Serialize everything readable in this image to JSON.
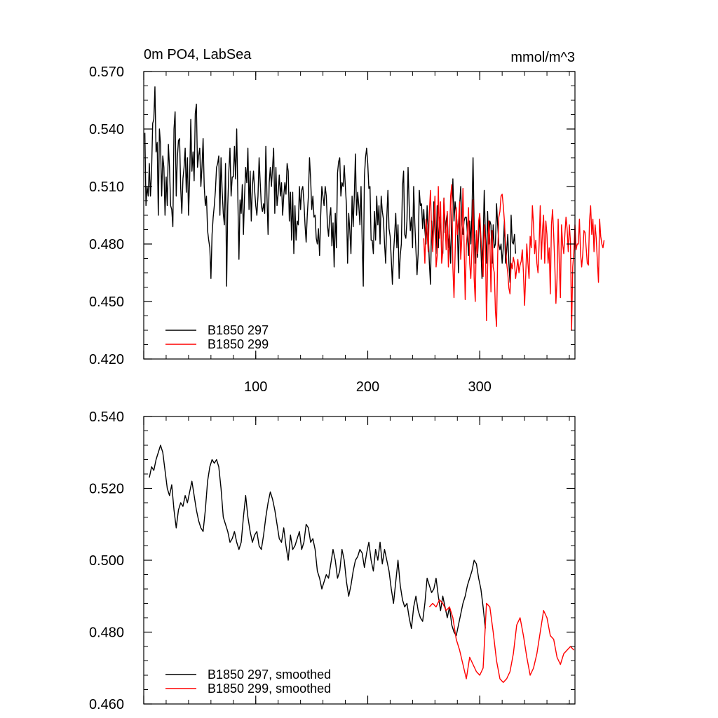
{
  "chart_data": [
    {
      "type": "line",
      "title": "0m PO4, LabSea",
      "units": "mmol/m^3",
      "xlabel": "",
      "ylabel": "",
      "xlim": [
        0,
        385
      ],
      "ylim": [
        0.42,
        0.57
      ],
      "yticks": [
        "0.570",
        "0.540",
        "0.510",
        "0.480",
        "0.450",
        "0.420"
      ],
      "xticks": [
        "100",
        "200",
        "300"
      ],
      "legend_position": "bottom-left",
      "series": [
        {
          "name": "B1850 297",
          "color": "#000000",
          "x_start": 1,
          "x_step": 1,
          "values": [
            0.538,
            0.5,
            0.51,
            0.505,
            0.522,
            0.505,
            0.518,
            0.543,
            0.545,
            0.562,
            0.528,
            0.533,
            0.495,
            0.54,
            0.532,
            0.505,
            0.526,
            0.52,
            0.495,
            0.515,
            0.5,
            0.532,
            0.52,
            0.5,
            0.498,
            0.489,
            0.54,
            0.549,
            0.505,
            0.525,
            0.534,
            0.535,
            0.509,
            0.496,
            0.514,
            0.52,
            0.53,
            0.507,
            0.525,
            0.495,
            0.514,
            0.545,
            0.518,
            0.528,
            0.513,
            0.548,
            0.553,
            0.52,
            0.526,
            0.53,
            0.51,
            0.52,
            0.535,
            0.51,
            0.5,
            0.505,
            0.487,
            0.482,
            0.478,
            0.462,
            0.485,
            0.494,
            0.5,
            0.508,
            0.52,
            0.522,
            0.526,
            0.495,
            0.525,
            0.508,
            0.496,
            0.49,
            0.522,
            0.458,
            0.5,
            0.518,
            0.53,
            0.505,
            0.515,
            0.515,
            0.531,
            0.514,
            0.54,
            0.505,
            0.472,
            0.503,
            0.496,
            0.511,
            0.485,
            0.505,
            0.52,
            0.512,
            0.53,
            0.498,
            0.518,
            0.492,
            0.51,
            0.518,
            0.508,
            0.5,
            0.495,
            0.505,
            0.525,
            0.512,
            0.5,
            0.497,
            0.501,
            0.496,
            0.531,
            0.505,
            0.485,
            0.512,
            0.52,
            0.51,
            0.52,
            0.53,
            0.496,
            0.52,
            0.5,
            0.506,
            0.516,
            0.505,
            0.512,
            0.495,
            0.505,
            0.512,
            0.506,
            0.522,
            0.518,
            0.492,
            0.507,
            0.482,
            0.507,
            0.475,
            0.5,
            0.482,
            0.492,
            0.49,
            0.51,
            0.498,
            0.508,
            0.51,
            0.502,
            0.49,
            0.481,
            0.495,
            0.505,
            0.525,
            0.514,
            0.498,
            0.505,
            0.494,
            0.495,
            0.483,
            0.48,
            0.488,
            0.474,
            0.495,
            0.51,
            0.505,
            0.5,
            0.51,
            0.505,
            0.49,
            0.484,
            0.494,
            0.499,
            0.479,
            0.491,
            0.468,
            0.496,
            0.478,
            0.517,
            0.523,
            0.525,
            0.505,
            0.512,
            0.51,
            0.521,
            0.51,
            0.5,
            0.47,
            0.496,
            0.487,
            0.475,
            0.505,
            0.489,
            0.505,
            0.527,
            0.495,
            0.507,
            0.5,
            0.49,
            0.51,
            0.482,
            0.458,
            0.515,
            0.525,
            0.53,
            0.522,
            0.509,
            0.51,
            0.482,
            0.482,
            0.475,
            0.497,
            0.482,
            0.505,
            0.49,
            0.5,
            0.48,
            0.505,
            0.497,
            0.493,
            0.48,
            0.47,
            0.494,
            0.508,
            0.488,
            0.484,
            0.472,
            0.459,
            0.475,
            0.485,
            0.496,
            0.478,
            0.49,
            0.462,
            0.474,
            0.48,
            0.51,
            0.518,
            0.485,
            0.483,
            0.492,
            0.52,
            0.5,
            0.487,
            0.494,
            0.478,
            0.51,
            0.491,
            0.477,
            0.464,
            0.475,
            0.508,
            0.5,
            0.501,
            0.488,
            0.498,
            0.487,
            0.48,
            0.5,
            0.486,
            0.47,
            0.459,
            0.492,
            0.479,
            0.502,
            0.487,
            0.475,
            0.5,
            0.478,
            0.494,
            0.493,
            0.476,
            0.475,
            0.504,
            0.486,
            0.492,
            0.496,
            0.478,
            0.485,
            0.47,
            0.495,
            0.514,
            0.492,
            0.502,
            0.496,
            0.489,
            0.465,
            0.5,
            0.51,
            0.49,
            0.485,
            0.492,
            0.494,
            0.494,
            0.485,
            0.474,
            0.492,
            0.48,
            0.495,
            0.525,
            0.49,
            0.47,
            0.485,
            0.473,
            0.485,
            0.495,
            0.478,
            0.462,
            0.48,
            0.508,
            0.485,
            0.47,
            0.497,
            0.48,
            0.492,
            0.49,
            0.47,
            0.49,
            0.478,
            0.48,
            0.501,
            0.49,
            0.48,
            0.477,
            0.48,
            0.47,
            0.478,
            0.492,
            0.47,
            0.476,
            0.485,
            0.47,
            0.46,
            0.495,
            0.481,
            0.48,
            0.485,
            0.475
          ]
        },
        {
          "name": "B1850 299",
          "color": "#ff0000",
          "x_start": 250,
          "x_step": 1,
          "values": [
            0.483,
            0.47,
            0.493,
            0.486,
            0.476,
            0.497,
            0.508,
            0.486,
            0.476,
            0.492,
            0.505,
            0.468,
            0.474,
            0.51,
            0.483,
            0.502,
            0.47,
            0.476,
            0.504,
            0.491,
            0.477,
            0.497,
            0.468,
            0.483,
            0.505,
            0.511,
            0.468,
            0.452,
            0.475,
            0.499,
            0.485,
            0.491,
            0.502,
            0.472,
            0.483,
            0.509,
            0.48,
            0.451,
            0.479,
            0.487,
            0.499,
            0.47,
            0.462,
            0.477,
            0.503,
            0.462,
            0.45,
            0.487,
            0.475,
            0.492,
            0.496,
            0.484,
            0.474,
            0.463,
            0.49,
            0.482,
            0.44,
            0.467,
            0.492,
            0.482,
            0.455,
            0.487,
            0.468,
            0.465,
            0.445,
            0.437,
            0.474,
            0.494,
            0.497,
            0.505,
            0.506,
            0.5,
            0.492,
            0.48,
            0.47,
            0.465,
            0.457,
            0.454,
            0.47,
            0.467,
            0.473,
            0.47,
            0.462,
            0.467,
            0.472,
            0.465,
            0.469,
            0.471,
            0.477,
            0.465,
            0.448,
            0.463,
            0.48,
            0.47,
            0.462,
            0.484,
            0.478,
            0.5,
            0.49,
            0.475,
            0.482,
            0.47,
            0.465,
            0.48,
            0.5,
            0.472,
            0.487,
            0.495,
            0.47,
            0.492,
            0.485,
            0.47,
            0.478,
            0.454,
            0.49,
            0.498,
            0.485,
            0.469,
            0.449,
            0.462,
            0.493,
            0.47,
            0.452,
            0.49,
            0.48,
            0.475,
            0.485,
            0.494,
            0.488,
            0.476,
            0.49,
            0.481,
            0.435,
            0.468,
            0.475,
            0.49,
            0.477,
            0.48,
            0.48,
            0.493,
            0.475,
            0.468,
            0.475,
            0.487,
            0.486,
            0.478,
            0.47,
            0.469,
            0.492,
            0.5,
            0.485,
            0.493,
            0.476,
            0.49,
            0.483,
            0.471,
            0.46,
            0.493,
            0.484,
            0.48,
            0.478,
            0.482
          ]
        }
      ]
    },
    {
      "type": "line",
      "title": "",
      "xlabel": "",
      "ylabel": "",
      "xlim": [
        0,
        385
      ],
      "ylim": [
        0.46,
        0.54
      ],
      "yticks": [
        "0.540",
        "0.520",
        "0.500",
        "0.480",
        "0.460"
      ],
      "legend_position": "bottom-left",
      "series": [
        {
          "name": "B1850 297, smoothed",
          "color": "#000000",
          "x": [
            5,
            7,
            9,
            11,
            13,
            15,
            17,
            19,
            21,
            23,
            25,
            27,
            29,
            31,
            33,
            35,
            37,
            39,
            41,
            43,
            45,
            47,
            49,
            51,
            53,
            55,
            57,
            59,
            61,
            63,
            65,
            67,
            69,
            71,
            73,
            75,
            77,
            79,
            81,
            83,
            85,
            87,
            89,
            91,
            93,
            95,
            97,
            99,
            101,
            103,
            105,
            107,
            109,
            111,
            113,
            115,
            117,
            119,
            121,
            123,
            125,
            127,
            129,
            131,
            133,
            135,
            137,
            139,
            141,
            143,
            145,
            147,
            149,
            151,
            153,
            155,
            157,
            159,
            161,
            163,
            165,
            167,
            169,
            171,
            173,
            175,
            177,
            179,
            181,
            183,
            185,
            187,
            189,
            191,
            193,
            195,
            197,
            199,
            201,
            203,
            205,
            207,
            209,
            211,
            213,
            215,
            217,
            219,
            221,
            223,
            225,
            227,
            229,
            231,
            233,
            235,
            237,
            239,
            241,
            243,
            245,
            247,
            249,
            251,
            253,
            255,
            257,
            259,
            261,
            263,
            265,
            267,
            269,
            271,
            273,
            275,
            277,
            279,
            281,
            283,
            285,
            287,
            289,
            291,
            293,
            295,
            297,
            299,
            301,
            303,
            305
          ],
          "y": [
            0.523,
            0.526,
            0.525,
            0.528,
            0.53,
            0.532,
            0.53,
            0.525,
            0.52,
            0.518,
            0.521,
            0.514,
            0.509,
            0.514,
            0.516,
            0.515,
            0.518,
            0.516,
            0.519,
            0.522,
            0.518,
            0.514,
            0.511,
            0.509,
            0.508,
            0.514,
            0.522,
            0.526,
            0.528,
            0.527,
            0.528,
            0.526,
            0.52,
            0.512,
            0.51,
            0.508,
            0.505,
            0.506,
            0.508,
            0.505,
            0.503,
            0.505,
            0.512,
            0.518,
            0.512,
            0.508,
            0.505,
            0.507,
            0.508,
            0.504,
            0.503,
            0.507,
            0.512,
            0.516,
            0.519,
            0.517,
            0.514,
            0.51,
            0.506,
            0.505,
            0.509,
            0.504,
            0.5,
            0.507,
            0.503,
            0.504,
            0.506,
            0.508,
            0.503,
            0.505,
            0.51,
            0.509,
            0.505,
            0.506,
            0.503,
            0.497,
            0.495,
            0.492,
            0.494,
            0.496,
            0.495,
            0.499,
            0.503,
            0.5,
            0.495,
            0.497,
            0.503,
            0.5,
            0.494,
            0.49,
            0.493,
            0.497,
            0.5,
            0.501,
            0.503,
            0.502,
            0.498,
            0.502,
            0.505,
            0.5,
            0.497,
            0.503,
            0.5,
            0.505,
            0.499,
            0.503,
            0.5,
            0.497,
            0.492,
            0.488,
            0.494,
            0.5,
            0.493,
            0.489,
            0.487,
            0.488,
            0.484,
            0.481,
            0.487,
            0.49,
            0.486,
            0.484,
            0.483,
            0.488,
            0.495,
            0.493,
            0.491,
            0.492,
            0.495,
            0.49,
            0.486,
            0.49,
            0.487,
            0.484,
            0.487,
            0.482,
            0.48,
            0.479,
            0.482,
            0.485,
            0.488,
            0.49,
            0.493,
            0.495,
            0.497,
            0.5,
            0.499,
            0.495,
            0.492,
            0.487,
            0.481
          ]
        },
        {
          "name": "B1850 299, smoothed",
          "color": "#ff0000",
          "x": [
            255,
            258,
            261,
            264,
            267,
            270,
            273,
            276,
            279,
            282,
            285,
            288,
            291,
            294,
            297,
            300,
            303,
            306,
            309,
            312,
            315,
            318,
            321,
            324,
            327,
            330,
            333,
            336,
            339,
            342,
            345,
            348,
            351,
            354,
            357,
            360,
            363,
            366,
            369,
            372,
            375,
            378,
            381,
            384
          ],
          "y": [
            0.487,
            0.488,
            0.487,
            0.489,
            0.488,
            0.486,
            0.487,
            0.484,
            0.478,
            0.475,
            0.471,
            0.467,
            0.473,
            0.471,
            0.469,
            0.468,
            0.47,
            0.488,
            0.487,
            0.48,
            0.472,
            0.467,
            0.466,
            0.467,
            0.469,
            0.474,
            0.482,
            0.484,
            0.479,
            0.473,
            0.468,
            0.47,
            0.474,
            0.48,
            0.486,
            0.484,
            0.479,
            0.478,
            0.473,
            0.471,
            0.474,
            0.475,
            0.476,
            0.475
          ]
        }
      ]
    }
  ]
}
